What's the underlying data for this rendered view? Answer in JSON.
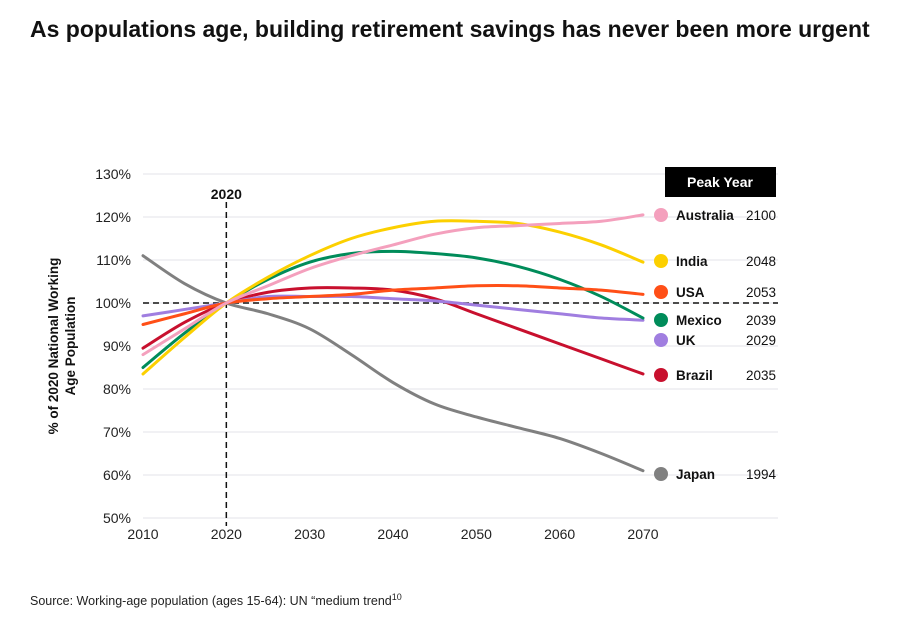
{
  "title": "As populations age, building retirement savings has never been more urgent",
  "source": "Source: Working-age population (ages 15-64): UN “medium trend",
  "source_sup": "10",
  "chart_data": {
    "type": "line",
    "title": "As populations age, building retirement savings has never been more urgent",
    "ylabel_lines": [
      "% of 2020 National Working",
      "Age Population"
    ],
    "xlim": [
      2010,
      2070
    ],
    "ylim": [
      50,
      130
    ],
    "x_ticks": [
      "2010",
      "2020",
      "2030",
      "2040",
      "2050",
      "2060",
      "2070"
    ],
    "y_ticks": [
      "50%",
      "60%",
      "70%",
      "80%",
      "90%",
      "100%",
      "110%",
      "120%",
      "130%"
    ],
    "grid": true,
    "reference_lines": {
      "x": 2020,
      "x_label": "2020",
      "y": 100
    },
    "legend_header": "Peak Year",
    "legend_placement": "right",
    "x": [
      2010,
      2015,
      2020,
      2025,
      2030,
      2035,
      2040,
      2045,
      2050,
      2055,
      2060,
      2065,
      2070
    ],
    "series": [
      {
        "name": "Australia",
        "peak": "2100",
        "color": "#f4a0bd",
        "values": [
          88,
          94,
          100,
          104,
          108,
          111,
          113.5,
          116,
          117.5,
          118,
          118.5,
          119,
          120.5
        ]
      },
      {
        "name": "India",
        "peak": "2048",
        "color": "#fcd000",
        "values": [
          83.5,
          92,
          100,
          106,
          111,
          115,
          117.5,
          119,
          119,
          118.5,
          116.5,
          113.5,
          109.5
        ]
      },
      {
        "name": "USA",
        "peak": "2053",
        "color": "#ff4f17",
        "values": [
          95,
          97.5,
          100,
          101,
          101.5,
          102,
          103,
          103.5,
          104,
          104,
          103.5,
          103,
          102
        ]
      },
      {
        "name": "Mexico",
        "peak": "2039",
        "color": "#008c5a",
        "values": [
          85,
          93,
          100,
          105.5,
          109.5,
          111.5,
          112,
          111.5,
          110.5,
          108.5,
          105.5,
          101.5,
          96.5
        ]
      },
      {
        "name": "UK",
        "peak": "2029",
        "color": "#a07ee0",
        "values": [
          97,
          98.5,
          100,
          101.5,
          101.5,
          101.5,
          101,
          100.5,
          99.5,
          98.5,
          97.5,
          96.5,
          96
        ]
      },
      {
        "name": "Brazil",
        "peak": "2035",
        "color": "#c8102e",
        "values": [
          89.5,
          95.5,
          100,
          102.5,
          103.5,
          103.5,
          103,
          101,
          97.5,
          94,
          90.5,
          87,
          83.5
        ]
      },
      {
        "name": "Japan",
        "peak": "1994",
        "color": "#808080",
        "values": [
          111,
          104.5,
          100,
          97.5,
          94,
          88,
          81.5,
          76.5,
          73.5,
          71,
          68.5,
          65,
          61
        ]
      }
    ]
  }
}
